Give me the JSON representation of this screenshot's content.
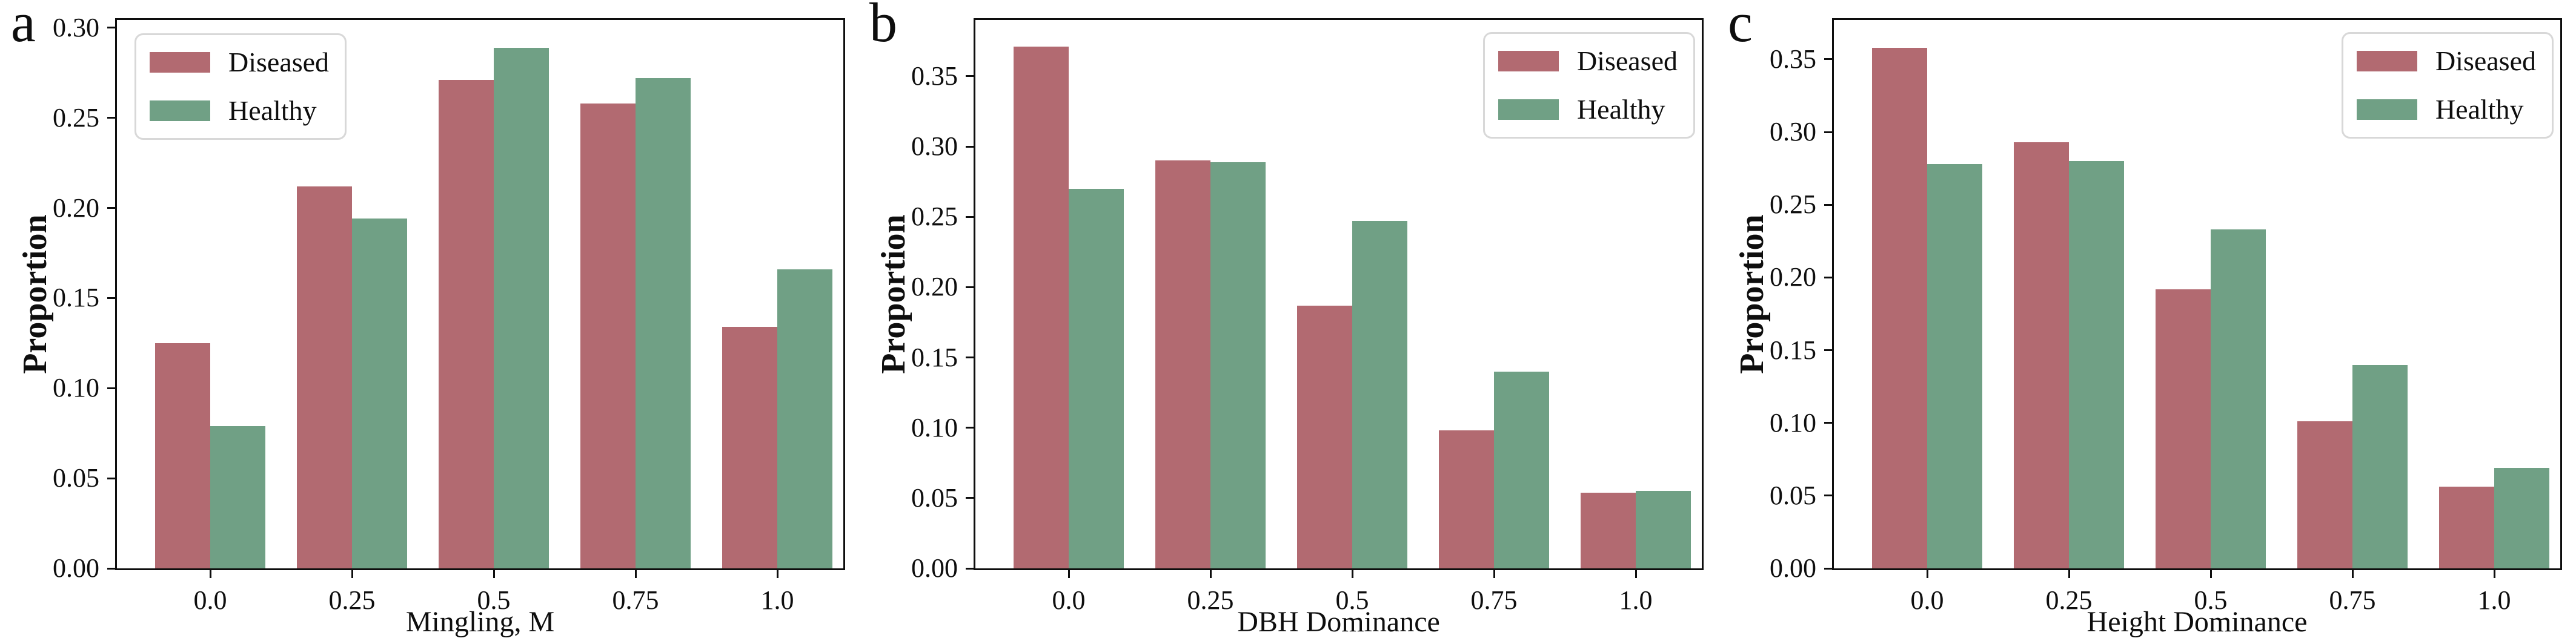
{
  "figure": {
    "background": "#ffffff",
    "text_color": "#0e0e0e",
    "series_colors": {
      "diseased": "#b26a71",
      "healthy": "#70a085"
    }
  },
  "chart_data": [
    {
      "type": "bar",
      "panel_letter": "a",
      "title": "",
      "xlabel": "Mingling, M",
      "ylabel": "Proportion",
      "categories": [
        "0.0",
        "0.25",
        "0.5",
        "0.75",
        "1.0"
      ],
      "series": [
        {
          "name": "Diseased",
          "color": "#b26a71",
          "values": [
            0.125,
            0.212,
            0.271,
            0.258,
            0.134
          ]
        },
        {
          "name": "Healthy",
          "color": "#70a085",
          "values": [
            0.079,
            0.194,
            0.289,
            0.272,
            0.166
          ]
        }
      ],
      "ylim": [
        0,
        0.3043
      ],
      "yticks": [
        "0.00",
        "0.05",
        "0.10",
        "0.15",
        "0.20",
        "0.25",
        "0.30"
      ],
      "ytick_step": 0.05,
      "grid": false,
      "legend": {
        "position": "upper-left",
        "entries": [
          {
            "label": "Diseased",
            "color": "#b26a71"
          },
          {
            "label": "Healthy",
            "color": "#70a085"
          }
        ]
      }
    },
    {
      "type": "bar",
      "panel_letter": "b",
      "title": "",
      "xlabel": "DBH Dominance",
      "ylabel": "Proportion",
      "categories": [
        "0.0",
        "0.25",
        "0.5",
        "0.75",
        "1.0"
      ],
      "series": [
        {
          "name": "Diseased",
          "color": "#b26a71",
          "values": [
            0.371,
            0.29,
            0.187,
            0.098,
            0.054
          ]
        },
        {
          "name": "Healthy",
          "color": "#70a085",
          "values": [
            0.27,
            0.289,
            0.247,
            0.14,
            0.055
          ]
        }
      ],
      "ylim": [
        0,
        0.39
      ],
      "yticks": [
        "0.00",
        "0.05",
        "0.10",
        "0.15",
        "0.20",
        "0.25",
        "0.30",
        "0.35"
      ],
      "ytick_step": 0.05,
      "grid": false,
      "legend": {
        "position": "upper-right",
        "entries": [
          {
            "label": "Diseased",
            "color": "#b26a71"
          },
          {
            "label": "Healthy",
            "color": "#70a085"
          }
        ]
      }
    },
    {
      "type": "bar",
      "panel_letter": "c",
      "title": "",
      "xlabel": "Height Dominance",
      "ylabel": "Proportion",
      "categories": [
        "0.0",
        "0.25",
        "0.5",
        "0.75",
        "1.0"
      ],
      "series": [
        {
          "name": "Diseased",
          "color": "#b26a71",
          "values": [
            0.358,
            0.293,
            0.192,
            0.101,
            0.056
          ]
        },
        {
          "name": "Healthy",
          "color": "#70a085",
          "values": [
            0.278,
            0.28,
            0.233,
            0.14,
            0.069
          ]
        }
      ],
      "ylim": [
        0,
        0.377
      ],
      "yticks": [
        "0.00",
        "0.05",
        "0.10",
        "0.15",
        "0.20",
        "0.25",
        "0.30",
        "0.35"
      ],
      "ytick_step": 0.05,
      "grid": false,
      "legend": {
        "position": "upper-right",
        "entries": [
          {
            "label": "Diseased",
            "color": "#b26a71"
          },
          {
            "label": "Healthy",
            "color": "#70a085"
          }
        ]
      }
    }
  ]
}
